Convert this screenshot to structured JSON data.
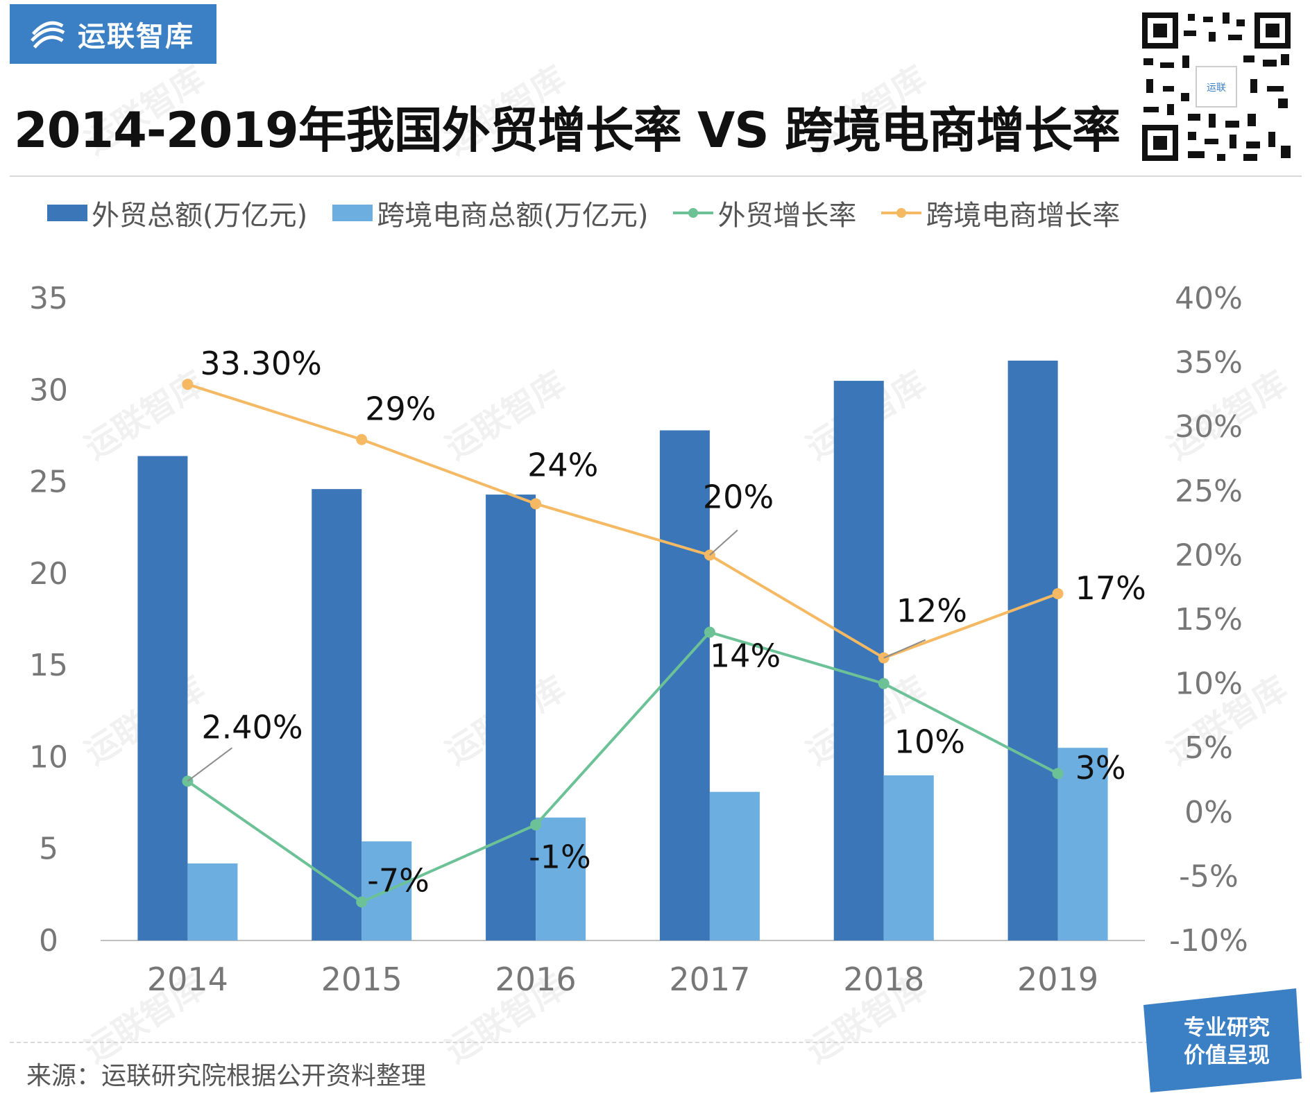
{
  "brand": {
    "name": "运联智库",
    "logo_icon": "swirl-logo-icon",
    "color": "#3b7fc4"
  },
  "header": {
    "title": "2014-2019年我国外贸增长率 VS 跨境电商增长率",
    "qr_icon": "qr-code-icon",
    "qr_label": "运联"
  },
  "legend": [
    {
      "label": "外贸总额(万亿元)",
      "kind": "bar",
      "color": "#3b76b8"
    },
    {
      "label": "跨境电商总额(万亿元)",
      "kind": "bar",
      "color": "#6caee0"
    },
    {
      "label": "外贸增长率",
      "kind": "line",
      "color": "#6cc296"
    },
    {
      "label": "跨境电商增长率",
      "kind": "line",
      "color": "#f5b963"
    }
  ],
  "chart_data": {
    "type": "bar",
    "categories": [
      "2014",
      "2015",
      "2016",
      "2017",
      "2018",
      "2019"
    ],
    "y_left": {
      "ticks": [
        "0",
        "5",
        "10",
        "15",
        "20",
        "25",
        "30",
        "35"
      ],
      "ylim": [
        0,
        35
      ]
    },
    "y_right": {
      "ticks": [
        "-10%",
        "-5%",
        "0%",
        "5%",
        "10%",
        "15%",
        "20%",
        "25%",
        "30%",
        "35%",
        "40%"
      ],
      "ylim": [
        -10,
        40
      ]
    },
    "grid": false,
    "legend_position": "top",
    "series": [
      {
        "name": "外贸总额(万亿元)",
        "type": "bar",
        "axis": "left",
        "color": "#3b76b8",
        "values": [
          26.4,
          24.6,
          24.3,
          27.8,
          30.5,
          31.6
        ]
      },
      {
        "name": "跨境电商总额(万亿元)",
        "type": "bar",
        "axis": "left",
        "color": "#6caee0",
        "values": [
          4.2,
          5.4,
          6.7,
          8.1,
          9.0,
          10.5
        ]
      },
      {
        "name": "外贸增长率",
        "type": "line",
        "axis": "right",
        "color": "#6cc296",
        "values": [
          2.4,
          -7,
          -1,
          14,
          10,
          3
        ],
        "labels": [
          "2.40%",
          "-7%",
          "-1%",
          "14%",
          "10%",
          "3%"
        ]
      },
      {
        "name": "跨境电商增长率",
        "type": "line",
        "axis": "right",
        "color": "#f5b963",
        "values": [
          33.3,
          29,
          24,
          20,
          12,
          17
        ],
        "labels": [
          "33.30%",
          "29%",
          "24%",
          "20%",
          "12%",
          "17%"
        ]
      }
    ]
  },
  "footer": {
    "source": "来源：运联研究院根据公开资料整理",
    "badge_line1": "专业研究",
    "badge_line2": "价值呈现",
    "badge_color": "#3b7fc4"
  },
  "watermark": "运联智库"
}
